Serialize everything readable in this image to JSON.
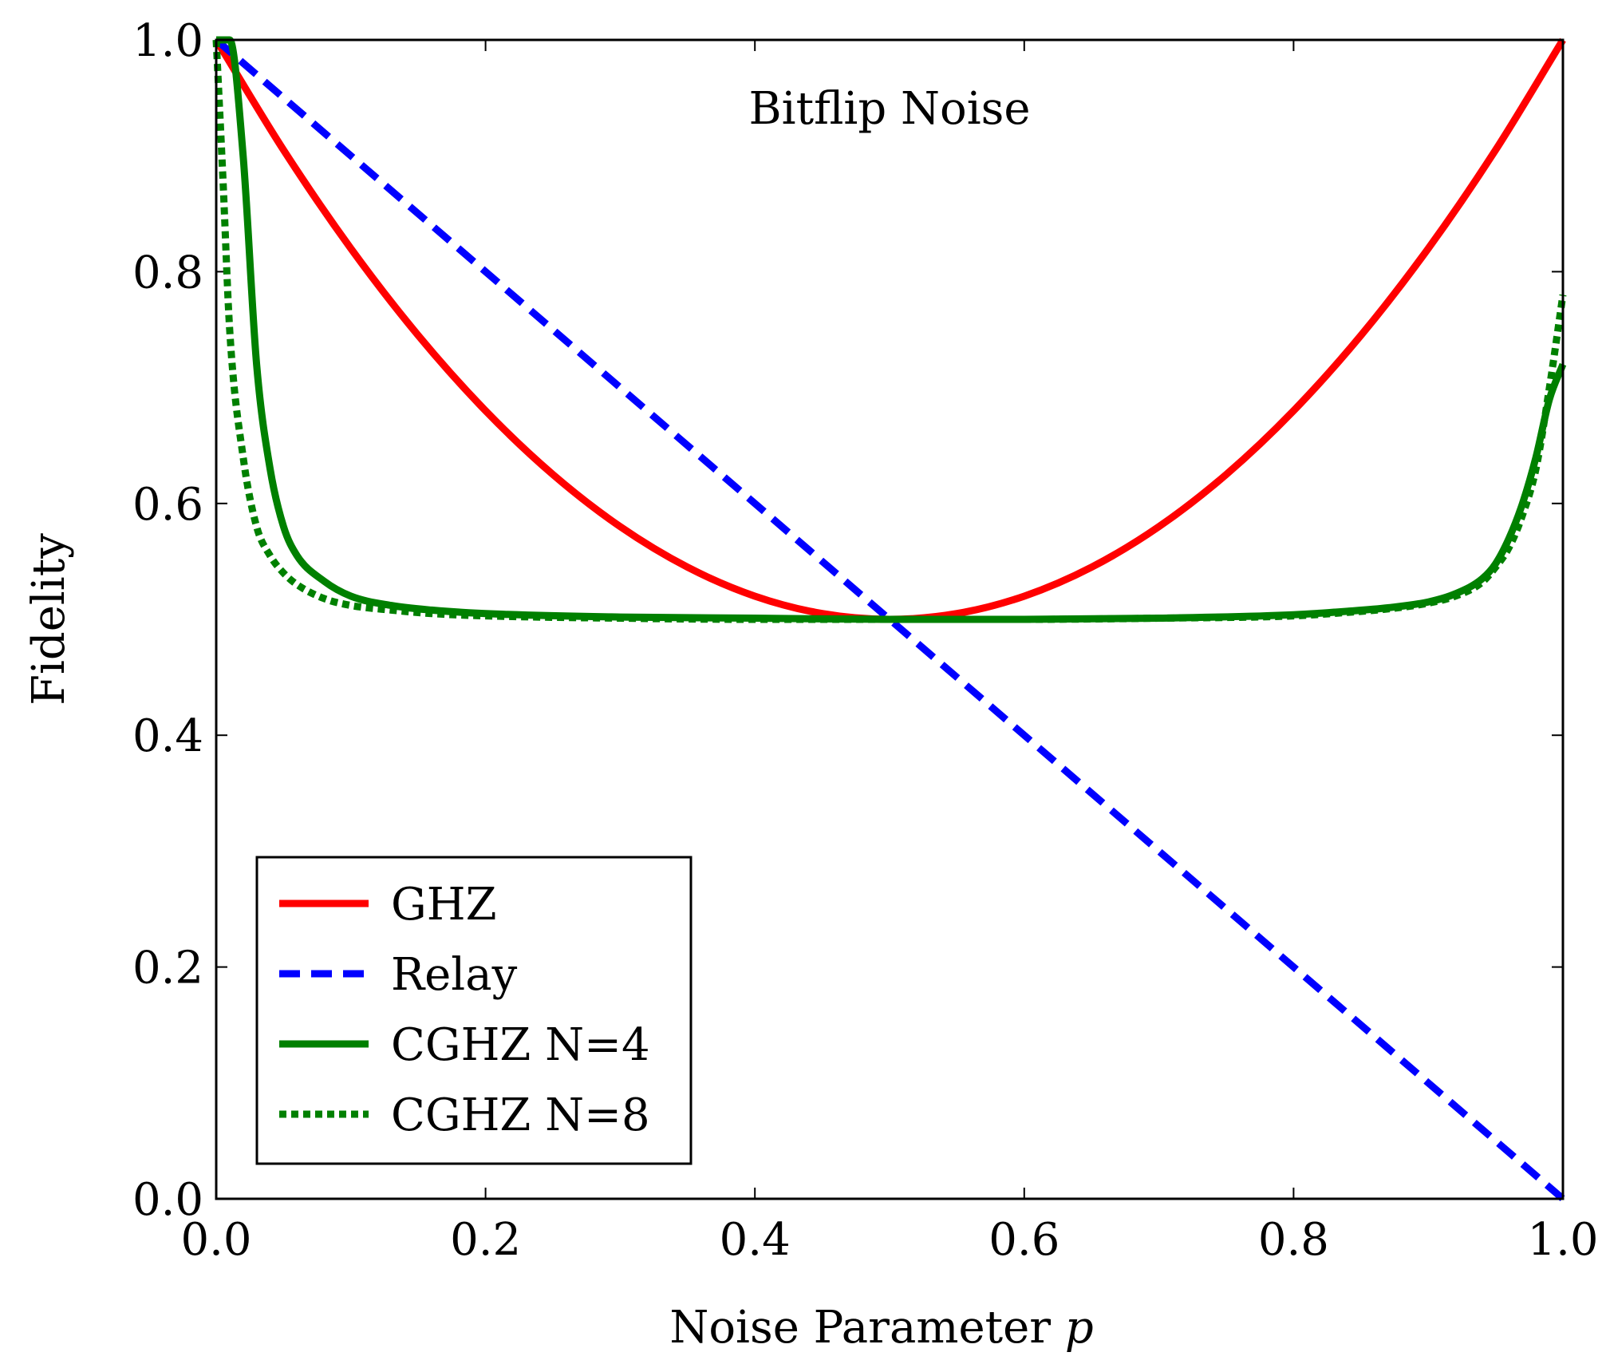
{
  "chart_data": {
    "type": "line",
    "title": "Bitflip Noise",
    "xlabel": "Noise Parameter",
    "xlabel_var": "p",
    "ylabel": "Fidelity",
    "xlim": [
      0,
      1
    ],
    "ylim": [
      0,
      1
    ],
    "x_ticks": [
      "0.0",
      "0.2",
      "0.4",
      "0.6",
      "0.8",
      "1.0"
    ],
    "y_ticks": [
      "0.0",
      "0.2",
      "0.4",
      "0.6",
      "0.8",
      "1.0"
    ],
    "grid": false,
    "legend_position": "bottom-left",
    "series": [
      {
        "name": "GHZ",
        "color": "#ff0000",
        "dash": "solid",
        "x": [
          0,
          0.05,
          0.1,
          0.15,
          0.2,
          0.25,
          0.3,
          0.35,
          0.4,
          0.45,
          0.5,
          0.55,
          0.6,
          0.65,
          0.7,
          0.75,
          0.8,
          0.85,
          0.9,
          0.95,
          1.0
        ],
        "y": [
          1.0,
          0.905,
          0.82,
          0.745,
          0.68,
          0.625,
          0.58,
          0.545,
          0.52,
          0.505,
          0.5,
          0.505,
          0.52,
          0.545,
          0.58,
          0.625,
          0.68,
          0.745,
          0.82,
          0.905,
          1.0
        ]
      },
      {
        "name": "Relay",
        "color": "#0000ff",
        "dash": "dashed",
        "x": [
          0,
          1.0
        ],
        "y": [
          1.0,
          0.0
        ]
      },
      {
        "name": "CGHZ N=4",
        "color": "#008000",
        "dash": "solid",
        "x": [
          0,
          0.01,
          0.02,
          0.03,
          0.04,
          0.05,
          0.06,
          0.08,
          0.1,
          0.13,
          0.16,
          0.2,
          0.3,
          0.4,
          0.5,
          0.6,
          0.7,
          0.8,
          0.84,
          0.87,
          0.9,
          0.92,
          0.94,
          0.95,
          0.96,
          0.97,
          0.98,
          0.99,
          1.0
        ],
        "y": [
          1.0,
          1.0,
          0.9,
          0.72,
          0.63,
          0.58,
          0.555,
          0.533,
          0.52,
          0.512,
          0.508,
          0.505,
          0.502,
          0.501,
          0.5,
          0.5,
          0.501,
          0.504,
          0.507,
          0.51,
          0.515,
          0.522,
          0.535,
          0.548,
          0.57,
          0.6,
          0.64,
          0.69,
          0.72
        ]
      },
      {
        "name": "CGHZ N=8",
        "color": "#008000",
        "dash": "dotted",
        "x": [
          0,
          0.005,
          0.01,
          0.02,
          0.03,
          0.04,
          0.05,
          0.06,
          0.08,
          0.1,
          0.13,
          0.16,
          0.2,
          0.3,
          0.4,
          0.5,
          0.6,
          0.7,
          0.8,
          0.84,
          0.87,
          0.9,
          0.92,
          0.94,
          0.95,
          0.96,
          0.97,
          0.98,
          0.99,
          1.0
        ],
        "y": [
          1.0,
          0.88,
          0.75,
          0.64,
          0.58,
          0.555,
          0.54,
          0.53,
          0.518,
          0.512,
          0.508,
          0.505,
          0.503,
          0.501,
          0.5,
          0.5,
          0.5,
          0.501,
          0.503,
          0.506,
          0.509,
          0.514,
          0.52,
          0.532,
          0.545,
          0.562,
          0.59,
          0.63,
          0.7,
          0.78
        ]
      }
    ]
  }
}
